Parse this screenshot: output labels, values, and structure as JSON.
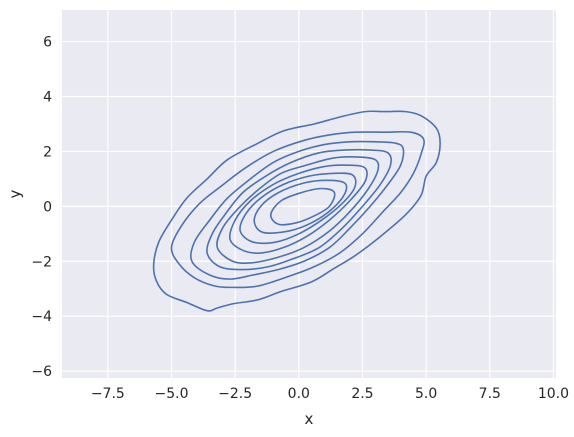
{
  "chart_data": {
    "type": "kde_contour",
    "title": "",
    "xlabel": "x",
    "ylabel": "y",
    "xlim": [
      -9.3,
      10.1
    ],
    "ylim": [
      -6.25,
      7.15
    ],
    "x_ticks": [
      -7.5,
      -5.0,
      -2.5,
      0.0,
      2.5,
      5.0,
      7.5,
      10.0
    ],
    "x_tick_labels": [
      "−7.5",
      "−5.0",
      "−2.5",
      "0.0",
      "2.5",
      "5.0",
      "7.5",
      "10.0"
    ],
    "y_ticks": [
      -6,
      -4,
      -2,
      0,
      2,
      4,
      6
    ],
    "y_tick_labels": [
      "−6",
      "−4",
      "−2",
      "0",
      "2",
      "4",
      "6"
    ],
    "grid": true,
    "style": {
      "background": "#eaeaf2",
      "grid_color": "#ffffff",
      "line_color": "#4c72b0"
    },
    "contours": [
      {
        "level": 1,
        "points": [
          [
            -3.6,
            -3.8
          ],
          [
            -4.4,
            -3.5
          ],
          [
            -5.2,
            -3.2
          ],
          [
            -5.6,
            -2.7
          ],
          [
            -5.7,
            -2.1
          ],
          [
            -5.5,
            -1.3
          ],
          [
            -5.0,
            -0.5
          ],
          [
            -4.4,
            0.3
          ],
          [
            -3.6,
            1.0
          ],
          [
            -2.8,
            1.7
          ],
          [
            -1.6,
            2.3
          ],
          [
            -0.6,
            2.75
          ],
          [
            0.6,
            3.0
          ],
          [
            1.6,
            3.25
          ],
          [
            2.6,
            3.45
          ],
          [
            3.4,
            3.45
          ],
          [
            4.2,
            3.45
          ],
          [
            4.8,
            3.3
          ],
          [
            5.4,
            2.85
          ],
          [
            5.55,
            2.3
          ],
          [
            5.4,
            1.6
          ],
          [
            5.0,
            1.1
          ],
          [
            4.8,
            0.4
          ],
          [
            4.2,
            -0.3
          ],
          [
            3.2,
            -1.1
          ],
          [
            2.2,
            -1.8
          ],
          [
            1.4,
            -2.25
          ],
          [
            0.5,
            -2.75
          ],
          [
            -0.7,
            -3.1
          ],
          [
            -1.6,
            -3.4
          ],
          [
            -2.6,
            -3.55
          ],
          [
            -3.2,
            -3.7
          ],
          [
            -3.6,
            -3.8
          ]
        ]
      },
      {
        "level": 2,
        "points": [
          [
            -3.3,
            -2.9
          ],
          [
            -4.1,
            -2.6
          ],
          [
            -4.7,
            -2.1
          ],
          [
            -5.0,
            -1.5
          ],
          [
            -4.6,
            -0.7
          ],
          [
            -3.9,
            0.1
          ],
          [
            -3.1,
            0.7
          ],
          [
            -2.1,
            1.4
          ],
          [
            -1.0,
            2.0
          ],
          [
            0.2,
            2.4
          ],
          [
            1.2,
            2.6
          ],
          [
            2.2,
            2.7
          ],
          [
            3.4,
            2.7
          ],
          [
            4.4,
            2.7
          ],
          [
            4.9,
            2.45
          ],
          [
            4.8,
            1.9
          ],
          [
            4.5,
            1.2
          ],
          [
            4.0,
            0.5
          ],
          [
            3.3,
            -0.2
          ],
          [
            2.5,
            -1.0
          ],
          [
            1.6,
            -1.7
          ],
          [
            0.6,
            -2.2
          ],
          [
            -0.4,
            -2.55
          ],
          [
            -1.6,
            -2.9
          ],
          [
            -2.6,
            -2.95
          ],
          [
            -3.3,
            -2.9
          ]
        ]
      },
      {
        "level": 3,
        "points": [
          [
            -3.5,
            -2.5
          ],
          [
            -4.2,
            -2.0
          ],
          [
            -4.1,
            -1.3
          ],
          [
            -3.5,
            -0.5
          ],
          [
            -2.8,
            0.3
          ],
          [
            -1.9,
            1.0
          ],
          [
            -1.0,
            1.6
          ],
          [
            0.0,
            2.0
          ],
          [
            1.0,
            2.25
          ],
          [
            2.0,
            2.35
          ],
          [
            3.0,
            2.35
          ],
          [
            3.8,
            2.3
          ],
          [
            4.1,
            2.1
          ],
          [
            4.0,
            1.5
          ],
          [
            3.5,
            0.8
          ],
          [
            2.8,
            0.0
          ],
          [
            2.0,
            -0.8
          ],
          [
            1.2,
            -1.5
          ],
          [
            0.2,
            -2.0
          ],
          [
            -0.8,
            -2.3
          ],
          [
            -1.8,
            -2.5
          ],
          [
            -2.7,
            -2.65
          ],
          [
            -3.5,
            -2.5
          ]
        ]
      },
      {
        "level": 4,
        "points": [
          [
            -3.1,
            -2.2
          ],
          [
            -3.6,
            -1.7
          ],
          [
            -3.4,
            -1.0
          ],
          [
            -2.9,
            -0.3
          ],
          [
            -2.2,
            0.5
          ],
          [
            -1.3,
            1.1
          ],
          [
            -0.3,
            1.6
          ],
          [
            0.8,
            1.95
          ],
          [
            1.8,
            2.05
          ],
          [
            2.8,
            2.05
          ],
          [
            3.5,
            1.95
          ],
          [
            3.6,
            1.5
          ],
          [
            3.2,
            0.8
          ],
          [
            2.5,
            0.0
          ],
          [
            1.7,
            -0.8
          ],
          [
            0.8,
            -1.5
          ],
          [
            -0.2,
            -1.9
          ],
          [
            -1.2,
            -2.2
          ],
          [
            -2.2,
            -2.3
          ],
          [
            -3.1,
            -2.2
          ]
        ]
      },
      {
        "level": 5,
        "points": [
          [
            -2.6,
            -2.0
          ],
          [
            -3.2,
            -1.5
          ],
          [
            -3.0,
            -0.8
          ],
          [
            -2.4,
            -0.1
          ],
          [
            -1.6,
            0.6
          ],
          [
            -0.7,
            1.2
          ],
          [
            0.3,
            1.5
          ],
          [
            1.3,
            1.75
          ],
          [
            2.2,
            1.8
          ],
          [
            3.0,
            1.7
          ],
          [
            3.1,
            1.3
          ],
          [
            2.7,
            0.6
          ],
          [
            2.0,
            -0.2
          ],
          [
            1.2,
            -0.9
          ],
          [
            0.2,
            -1.5
          ],
          [
            -0.8,
            -1.85
          ],
          [
            -1.8,
            -2.05
          ],
          [
            -2.6,
            -2.0
          ]
        ]
      },
      {
        "level": 6,
        "points": [
          [
            -2.2,
            -1.6
          ],
          [
            -2.7,
            -1.2
          ],
          [
            -2.5,
            -0.5
          ],
          [
            -1.9,
            0.2
          ],
          [
            -1.0,
            0.8
          ],
          [
            0.0,
            1.2
          ],
          [
            1.0,
            1.45
          ],
          [
            1.9,
            1.5
          ],
          [
            2.6,
            1.4
          ],
          [
            2.6,
            0.9
          ],
          [
            2.0,
            0.2
          ],
          [
            1.2,
            -0.5
          ],
          [
            0.3,
            -1.1
          ],
          [
            -0.6,
            -1.5
          ],
          [
            -1.5,
            -1.7
          ],
          [
            -2.2,
            -1.6
          ]
        ]
      },
      {
        "level": 7,
        "points": [
          [
            -1.8,
            -1.3
          ],
          [
            -2.3,
            -0.9
          ],
          [
            -2.1,
            -0.3
          ],
          [
            -1.5,
            0.3
          ],
          [
            -0.6,
            0.8
          ],
          [
            0.4,
            1.1
          ],
          [
            1.3,
            1.2
          ],
          [
            2.1,
            1.15
          ],
          [
            2.2,
            0.7
          ],
          [
            1.7,
            0.1
          ],
          [
            0.9,
            -0.5
          ],
          [
            0.0,
            -1.0
          ],
          [
            -0.9,
            -1.3
          ],
          [
            -1.8,
            -1.3
          ]
        ]
      },
      {
        "level": 8,
        "points": [
          [
            -1.4,
            -0.95
          ],
          [
            -1.75,
            -0.55
          ],
          [
            -1.5,
            0.0
          ],
          [
            -0.8,
            0.5
          ],
          [
            0.2,
            0.85
          ],
          [
            1.1,
            0.95
          ],
          [
            1.8,
            0.85
          ],
          [
            1.8,
            0.45
          ],
          [
            1.3,
            -0.1
          ],
          [
            0.5,
            -0.6
          ],
          [
            -0.4,
            -0.9
          ],
          [
            -1.4,
            -0.95
          ]
        ]
      },
      {
        "level": 9,
        "points": [
          [
            -0.8,
            -0.65
          ],
          [
            -1.1,
            -0.3
          ],
          [
            -0.7,
            0.2
          ],
          [
            0.1,
            0.5
          ],
          [
            0.9,
            0.65
          ],
          [
            1.4,
            0.5
          ],
          [
            1.2,
            0.0
          ],
          [
            0.6,
            -0.35
          ],
          [
            -0.1,
            -0.6
          ],
          [
            -0.8,
            -0.65
          ]
        ]
      }
    ]
  }
}
